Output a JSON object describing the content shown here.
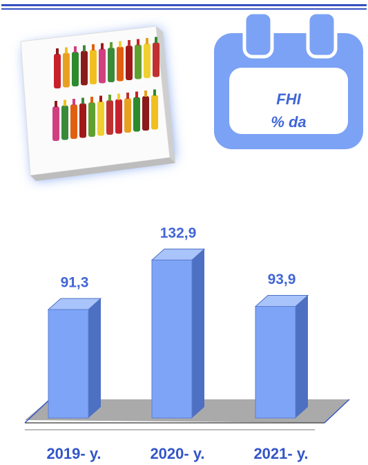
{
  "chart_data": {
    "type": "bar3d",
    "annotations": [
      "FHI",
      "% da"
    ],
    "categories": [
      "2019- y.",
      "2020- y.",
      "2021- y."
    ],
    "values": [
      91.3,
      132.9,
      93.9
    ],
    "value_labels": [
      "91,3",
      "132,9",
      "93,9"
    ],
    "color": "#7ea4f7"
  }
}
